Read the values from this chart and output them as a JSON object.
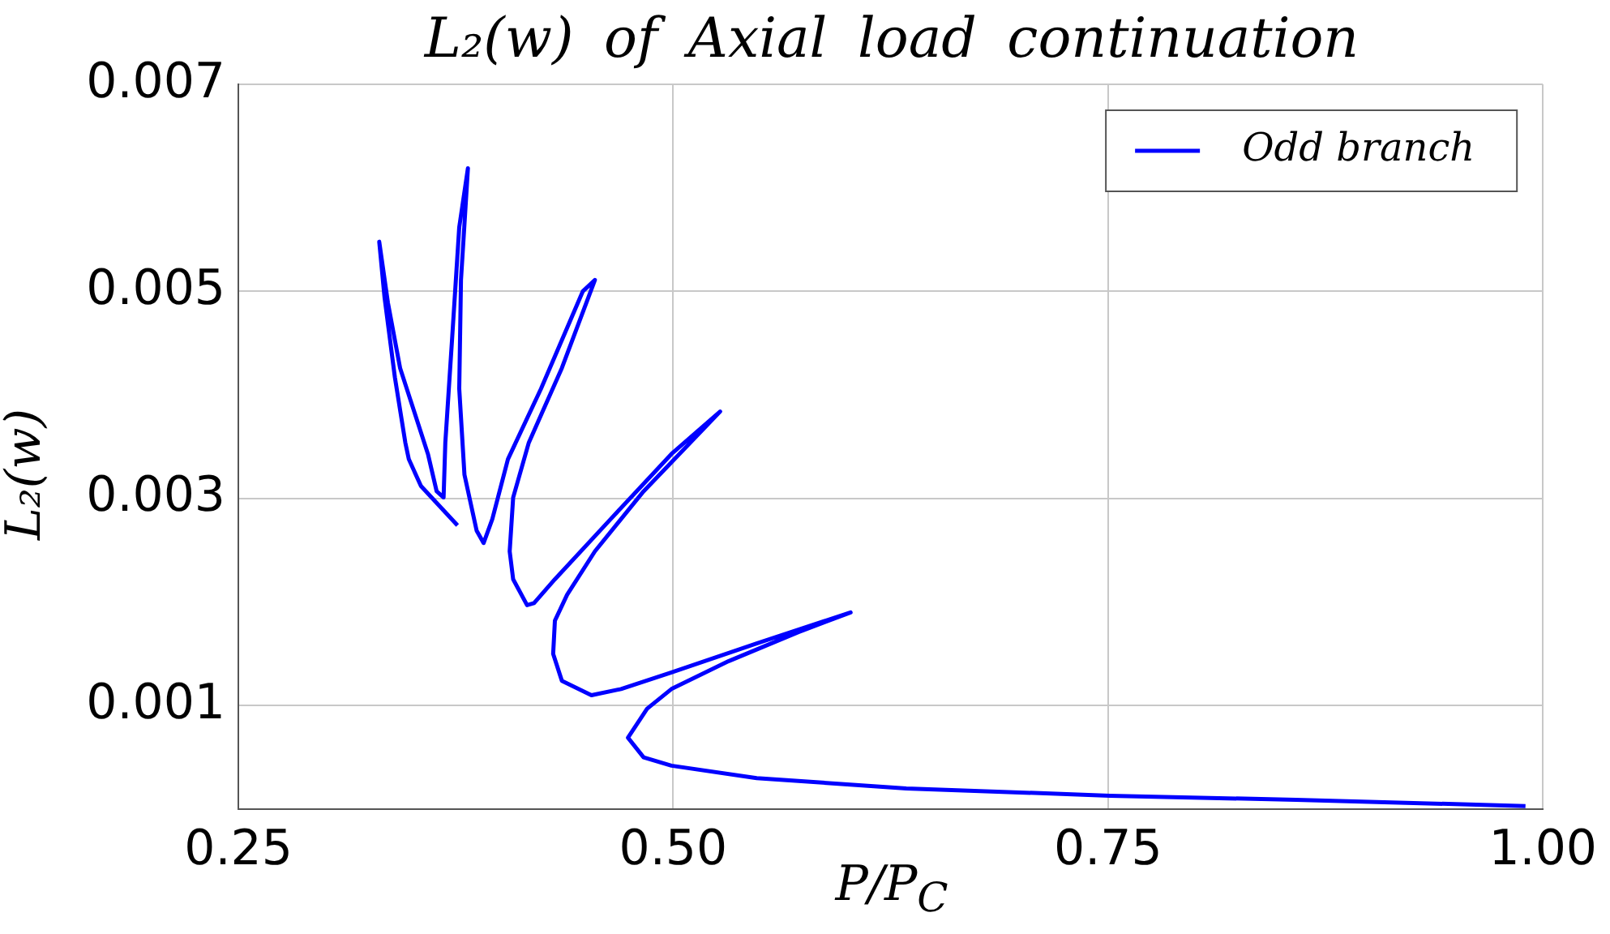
{
  "chart_data": {
    "type": "line",
    "title": "L₂(w)  of  Axial  load  continuation",
    "xlabel": "P/P$_{C}$",
    "ylabel": "L₂(w)",
    "x": [
      0.99,
      0.858,
      0.751,
      0.634,
      0.548,
      0.499,
      0.483,
      0.474,
      0.485,
      0.499,
      0.532,
      0.572,
      0.602,
      0.548,
      0.499,
      0.47,
      0.453,
      0.436,
      0.431,
      0.432,
      0.439,
      0.455,
      0.483,
      0.527,
      0.499,
      0.464,
      0.432,
      0.42,
      0.416,
      0.408,
      0.406,
      0.408,
      0.417,
      0.436,
      0.455,
      0.448,
      0.424,
      0.405,
      0.396,
      0.391,
      0.387,
      0.38,
      0.377,
      0.378,
      0.382,
      0.377,
      0.373,
      0.369,
      0.368,
      0.364,
      0.359,
      0.343,
      0.336,
      0.331,
      0.334,
      0.34,
      0.346,
      0.348,
      0.355,
      0.376
    ],
    "series": [
      {
        "name": "Odd branch",
        "color": "#0000ff",
        "values": [
          3e-05,
          9e-05,
          0.00013,
          0.0002,
          0.0003,
          0.00042,
          0.0005,
          0.00069,
          0.00097,
          0.00116,
          0.00143,
          0.00171,
          0.0019,
          0.0016,
          0.00132,
          0.00116,
          0.0011,
          0.00124,
          0.0015,
          0.00182,
          0.00207,
          0.00249,
          0.00307,
          0.00384,
          0.00343,
          0.0028,
          0.00222,
          0.00199,
          0.00197,
          0.00222,
          0.00249,
          0.00301,
          0.00354,
          0.00426,
          0.00511,
          0.005,
          0.00406,
          0.00338,
          0.0028,
          0.00257,
          0.00269,
          0.00323,
          0.00406,
          0.00511,
          0.00619,
          0.00562,
          0.00457,
          0.00354,
          0.00301,
          0.00307,
          0.00343,
          0.00426,
          0.00489,
          0.00548,
          0.00495,
          0.00417,
          0.00354,
          0.00338,
          0.00312,
          0.00274
        ]
      }
    ],
    "xlim": [
      0.25,
      1.0
    ],
    "xticks": [
      {
        "value": 0.25,
        "label": "0.25"
      },
      {
        "value": 0.5,
        "label": "0.50"
      },
      {
        "value": 0.75,
        "label": "0.75"
      },
      {
        "value": 1.0,
        "label": "1.00"
      }
    ],
    "ylim": [
      0,
      0.007
    ],
    "yticks": [
      0.001,
      0.003,
      0.005,
      0.007
    ],
    "grid": true,
    "legend": "top right",
    "marker": "none",
    "line_style": "solid"
  }
}
